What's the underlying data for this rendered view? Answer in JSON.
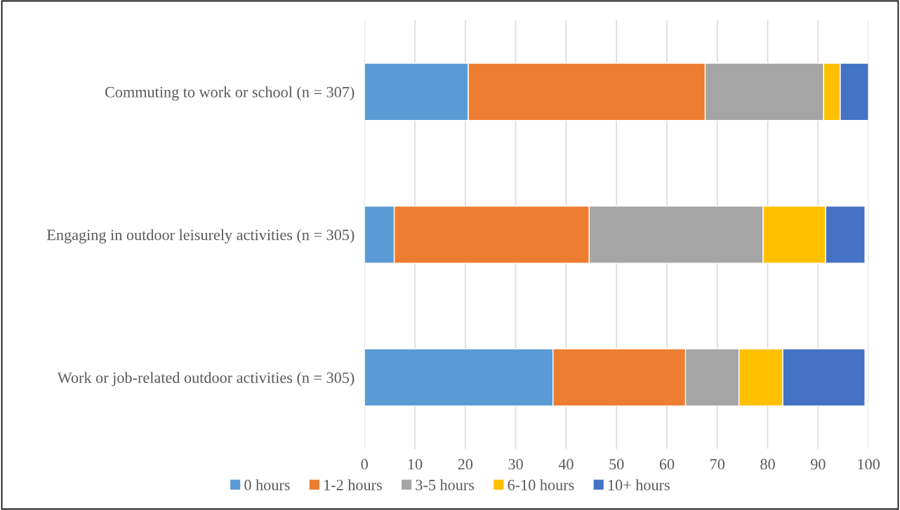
{
  "chart_data": {
    "type": "bar",
    "orientation": "horizontal",
    "stacked": true,
    "categories": [
      "Commuting to work or school (n = 307)",
      "Engaging in outdoor leisurely activities (n = 305)",
      "Work or job-related outdoor activities (n = 305)"
    ],
    "series": [
      {
        "name": "0 hours",
        "color": "#5b9bd5",
        "values": [
          20.6,
          5.9,
          37.4
        ]
      },
      {
        "name": "1-2 hours",
        "color": "#ed7d31",
        "values": [
          47.0,
          38.7,
          26.3
        ]
      },
      {
        "name": "3-5 hours",
        "color": "#a5a5a5",
        "values": [
          23.5,
          34.5,
          10.6
        ]
      },
      {
        "name": "6-10 hours",
        "color": "#ffc000",
        "values": [
          3.3,
          12.4,
          8.7
        ]
      },
      {
        "name": "10+ hours",
        "color": "#4472c4",
        "values": [
          5.6,
          7.8,
          16.3
        ]
      }
    ],
    "xlim": [
      0,
      100
    ],
    "xticks": [
      0,
      10,
      20,
      30,
      40,
      50,
      60,
      70,
      80,
      90,
      100
    ],
    "grid": "x",
    "legend": "bottom"
  }
}
